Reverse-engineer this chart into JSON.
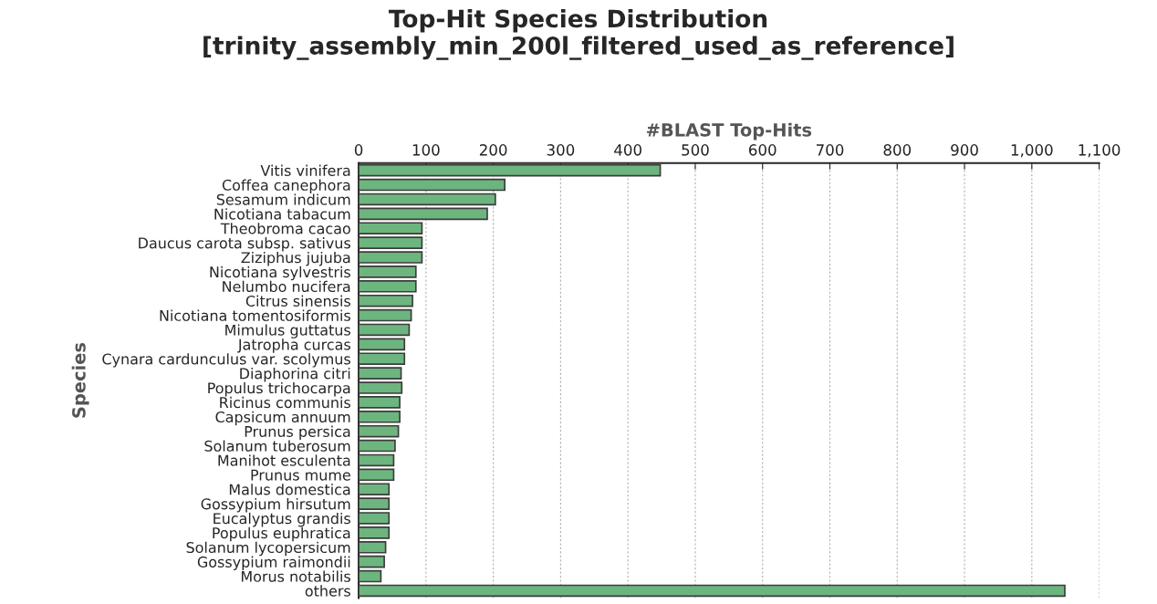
{
  "chart_data": {
    "type": "bar",
    "orientation": "horizontal",
    "title": "Top-Hit Species Distribution\n[trinity_assembly_min_200l_filtered_used_as_reference]",
    "xlabel": "#BLAST Top-Hits",
    "ylabel": "Species",
    "categories": [
      "Vitis vinifera",
      "Coffea canephora",
      "Sesamum indicum",
      "Nicotiana tabacum",
      "Theobroma cacao",
      "Daucus carota subsp. sativus",
      "Ziziphus jujuba",
      "Nicotiana sylvestris",
      "Nelumbo nucifera",
      "Citrus sinensis",
      "Nicotiana tomentosiformis",
      "Mimulus guttatus",
      "Jatropha curcas",
      "Cynara cardunculus var. scolymus",
      "Diaphorina citri",
      "Populus trichocarpa",
      "Ricinus communis",
      "Capsicum annuum",
      "Prunus persica",
      "Solanum tuberosum",
      "Manihot esculenta",
      "Prunus mume",
      "Malus domestica",
      "Gossypium hirsutum",
      "Eucalyptus grandis",
      "Populus euphratica",
      "Solanum lycopersicum",
      "Gossypium raimondii",
      "Morus notabilis",
      "others"
    ],
    "values": [
      448,
      217,
      203,
      191,
      94,
      94,
      94,
      85,
      85,
      80,
      78,
      75,
      68,
      68,
      63,
      64,
      61,
      61,
      59,
      54,
      52,
      52,
      45,
      45,
      45,
      45,
      40,
      38,
      33,
      1049
    ],
    "color": "#6db57e",
    "xlim": [
      0,
      1100
    ],
    "xticks": [
      0,
      100,
      200,
      300,
      400,
      500,
      600,
      700,
      800,
      900,
      {
        "value": 1000,
        "label": "1,000"
      },
      {
        "value": 1100,
        "label": "1,100"
      }
    ],
    "grid": "x",
    "legend": false
  }
}
